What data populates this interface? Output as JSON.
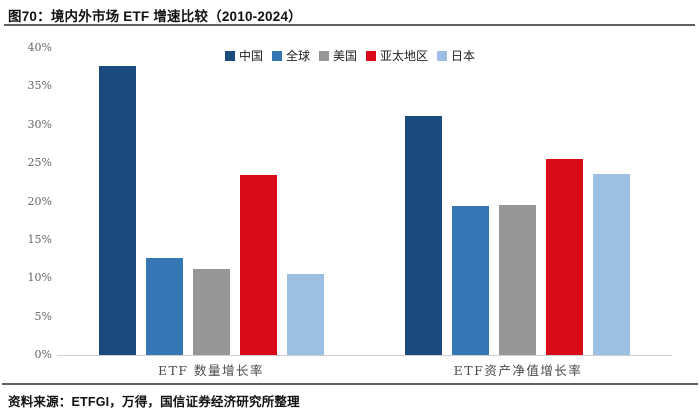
{
  "title": "图70：境内外市场 ETF 增速比较（2010-2024）",
  "source": "资料来源：ETFGI，万得，国信证券经济研究所整理",
  "colors": {
    "china": "#1b4a7d",
    "global": "#3576b4",
    "us": "#969696",
    "asia_pacific": "#d80c18",
    "japan": "#9cc0e3",
    "rule": "#5f5f5f",
    "axis_line": "#cfcfcf"
  },
  "chart_data": {
    "type": "bar",
    "categories": [
      "ETF 数量增长率",
      "ETF资产净值增长率"
    ],
    "series": [
      {
        "name": "中国",
        "color": "#1b4a7d",
        "values": [
          37.7,
          31.2
        ]
      },
      {
        "name": "全球",
        "color": "#3576b4",
        "values": [
          12.6,
          19.4
        ]
      },
      {
        "name": "美国",
        "color": "#969696",
        "values": [
          11.2,
          19.6
        ]
      },
      {
        "name": "亚太地区",
        "color": "#d80c18",
        "values": [
          23.5,
          25.5
        ]
      },
      {
        "name": "日本",
        "color": "#9cc0e3",
        "values": [
          10.5,
          23.6
        ]
      }
    ],
    "ylabel": "",
    "xlabel": "",
    "ylim": [
      0,
      40
    ],
    "yticks": [
      "0%",
      "5%",
      "10%",
      "15%",
      "20%",
      "25%",
      "30%",
      "35%",
      "40%"
    ],
    "legend_position": "top-center",
    "grid": false
  }
}
